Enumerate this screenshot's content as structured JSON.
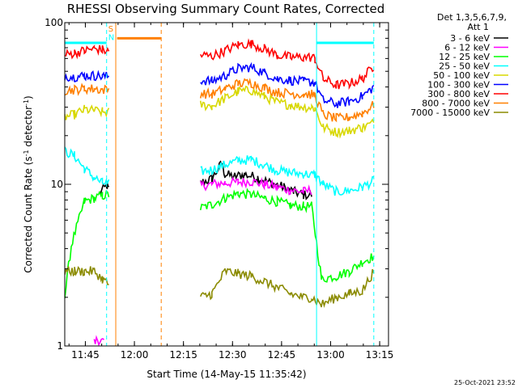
{
  "chart_data": {
    "type": "line",
    "title": "RHESSI Observing Summary Count Rates, Corrected",
    "xlabel": "Start Time (14-May-15 11:35:42)",
    "ylabel_main": "Corrected Count Rate (s",
    "ylabel_sup1": "-1",
    "ylabel_mid": " detector",
    "ylabel_sup2": "-1",
    "ylabel_end": ")",
    "y_scale": "log",
    "ylim": [
      1,
      100
    ],
    "x_range_min": [
      3.0,
      102.0
    ],
    "x_ticks": [
      {
        "label": "11:45",
        "min": 9.3
      },
      {
        "label": "12:00",
        "min": 24.3
      },
      {
        "label": "12:15",
        "min": 39.3
      },
      {
        "label": "12:30",
        "min": 54.3
      },
      {
        "label": "12:45",
        "min": 69.3
      },
      {
        "label": "13:00",
        "min": 84.3
      },
      {
        "label": "13:15",
        "min": 99.3
      }
    ],
    "y_ticks": [
      {
        "label": "100",
        "value": 100
      },
      {
        "label": "10",
        "value": 10
      },
      {
        "label": "1",
        "value": 1
      }
    ],
    "legend_header": [
      "Det 1,3,5,6,7,9,",
      "Att 1"
    ],
    "series": [
      {
        "name": "3 - 6 keV",
        "color": "#000000",
        "points": [
          [
            13.5,
            8.8
          ],
          [
            16.0,
            9.8
          ],
          [
            16.5,
            9.2
          ],
          [
            44.5,
            10.2
          ],
          [
            48,
            10.8
          ],
          [
            51,
            13.5
          ],
          [
            52,
            11.5
          ],
          [
            55,
            11.2
          ],
          [
            58,
            11.5
          ],
          [
            62,
            11.0
          ],
          [
            66,
            10.2
          ],
          [
            70,
            9.6
          ],
          [
            73,
            9.0
          ],
          [
            76,
            8.6
          ],
          [
            78.5,
            8.6
          ]
        ]
      },
      {
        "name": "6 - 12 keV",
        "color": "#ff00ff",
        "points": [
          [
            12.0,
            1.05
          ],
          [
            13.0,
            1.1
          ],
          [
            15.0,
            1.05
          ],
          [
            44.5,
            9.8
          ],
          [
            48,
            10.0
          ],
          [
            52,
            10.2
          ],
          [
            56,
            10.3
          ],
          [
            60,
            10.4
          ],
          [
            64,
            10.0
          ],
          [
            68,
            9.6
          ],
          [
            72,
            9.2
          ],
          [
            76,
            9.0
          ],
          [
            78.5,
            9.2
          ]
        ]
      },
      {
        "name": "12 - 25 keV",
        "color": "#00ff00",
        "points": [
          [
            3.0,
            2.0
          ],
          [
            5,
            4.2
          ],
          [
            9,
            7.8
          ],
          [
            12,
            8.2
          ],
          [
            14.5,
            8.5
          ],
          [
            16.5,
            8.6
          ],
          [
            44.5,
            7.1
          ],
          [
            48,
            7.5
          ],
          [
            52,
            8.2
          ],
          [
            56,
            8.8
          ],
          [
            60,
            8.6
          ],
          [
            64,
            8.2
          ],
          [
            68,
            7.8
          ],
          [
            72,
            7.4
          ],
          [
            76,
            7.3
          ],
          [
            78.5,
            7.3
          ],
          [
            81.5,
            2.6
          ],
          [
            86,
            2.7
          ],
          [
            90,
            2.9
          ],
          [
            94,
            3.3
          ],
          [
            97.5,
            3.6
          ]
        ]
      },
      {
        "name": "25 - 50 keV",
        "color": "#00ffff",
        "points": [
          [
            3.0,
            16
          ],
          [
            6,
            15
          ],
          [
            9,
            12.5
          ],
          [
            12,
            11.0
          ],
          [
            14.5,
            10.2
          ],
          [
            16.5,
            10.1
          ],
          [
            44.5,
            12.0
          ],
          [
            48,
            12.3
          ],
          [
            52,
            13.2
          ],
          [
            56,
            14.0
          ],
          [
            60,
            14.2
          ],
          [
            64,
            13.2
          ],
          [
            68,
            12.2
          ],
          [
            72,
            11.8
          ],
          [
            76,
            11.6
          ],
          [
            78.5,
            11.5
          ],
          [
            79.5,
            11.5
          ],
          [
            82,
            10.0
          ],
          [
            86,
            9.0
          ],
          [
            90,
            9.1
          ],
          [
            94,
            9.6
          ],
          [
            97.5,
            10.5
          ]
        ]
      },
      {
        "name": "50 - 100 keV",
        "color": "#d8d800",
        "points": [
          [
            3.0,
            26
          ],
          [
            6,
            27
          ],
          [
            9,
            29
          ],
          [
            12,
            28.5
          ],
          [
            14.5,
            28
          ],
          [
            16.5,
            28
          ],
          [
            44.5,
            31
          ],
          [
            48,
            30.5
          ],
          [
            52,
            34
          ],
          [
            56,
            37.5
          ],
          [
            60,
            38
          ],
          [
            64,
            35
          ],
          [
            68,
            32
          ],
          [
            72,
            31
          ],
          [
            76,
            30
          ],
          [
            78.5,
            30
          ],
          [
            79.5,
            29.5
          ],
          [
            82,
            22.5
          ],
          [
            86,
            21.0
          ],
          [
            90,
            21.5
          ],
          [
            94,
            22.5
          ],
          [
            97.5,
            24
          ]
        ]
      },
      {
        "name": "100 - 300 keV",
        "color": "#0000ff",
        "points": [
          [
            3.0,
            47
          ],
          [
            6,
            46
          ],
          [
            9,
            47
          ],
          [
            12,
            47
          ],
          [
            14.5,
            46.5
          ],
          [
            16.5,
            46.5
          ],
          [
            44.5,
            44
          ],
          [
            48,
            43.5
          ],
          [
            52,
            47
          ],
          [
            56,
            52
          ],
          [
            60,
            53
          ],
          [
            64,
            49
          ],
          [
            68,
            45
          ],
          [
            72,
            44
          ],
          [
            76,
            43
          ],
          [
            78.5,
            43
          ],
          [
            79.5,
            42.5
          ],
          [
            82,
            33
          ],
          [
            86,
            31.5
          ],
          [
            90,
            32.5
          ],
          [
            94,
            35
          ],
          [
            97.5,
            40
          ]
        ]
      },
      {
        "name": "300 - 800 keV",
        "color": "#ff0000",
        "points": [
          [
            3.0,
            63
          ],
          [
            6,
            65
          ],
          [
            9,
            67
          ],
          [
            12,
            69
          ],
          [
            14.5,
            68
          ],
          [
            16.5,
            66
          ],
          [
            44.5,
            63
          ],
          [
            48,
            62
          ],
          [
            52,
            67
          ],
          [
            56,
            73
          ],
          [
            60,
            74
          ],
          [
            64,
            69
          ],
          [
            68,
            63
          ],
          [
            72,
            61
          ],
          [
            76,
            61
          ],
          [
            78.5,
            61
          ],
          [
            79.5,
            60
          ],
          [
            82,
            45
          ],
          [
            86,
            41
          ],
          [
            90,
            42
          ],
          [
            94,
            45
          ],
          [
            97.5,
            54
          ]
        ]
      },
      {
        "name": "800 - 7000 keV",
        "color": "#ff8000",
        "points": [
          [
            3.0,
            38
          ],
          [
            6,
            38.5
          ],
          [
            9,
            39
          ],
          [
            12,
            39
          ],
          [
            14.5,
            38.5
          ],
          [
            16.5,
            38.5
          ],
          [
            44.5,
            36.5
          ],
          [
            48,
            36
          ],
          [
            52,
            39
          ],
          [
            56,
            42
          ],
          [
            60,
            42.5
          ],
          [
            64,
            39.5
          ],
          [
            68,
            37
          ],
          [
            72,
            36.5
          ],
          [
            76,
            36
          ],
          [
            78.5,
            36
          ],
          [
            79.5,
            35.5
          ],
          [
            82,
            27
          ],
          [
            86,
            25.5
          ],
          [
            90,
            26
          ],
          [
            94,
            27.5
          ],
          [
            97.5,
            31
          ]
        ]
      },
      {
        "name": "7000 - 15000 keV",
        "color": "#8b8b00",
        "points": [
          [
            3.0,
            2.9
          ],
          [
            6,
            2.9
          ],
          [
            9,
            2.9
          ],
          [
            12,
            2.9
          ],
          [
            14.5,
            2.6
          ],
          [
            16.5,
            2.4
          ],
          [
            44.5,
            2.0
          ],
          [
            48,
            2.1
          ],
          [
            52,
            2.9
          ],
          [
            56,
            2.8
          ],
          [
            60,
            2.7
          ],
          [
            64,
            2.5
          ],
          [
            68,
            2.3
          ],
          [
            72,
            2.1
          ],
          [
            76,
            2.0
          ],
          [
            78.5,
            2.0
          ],
          [
            81.5,
            1.8
          ],
          [
            86,
            2.0
          ],
          [
            90,
            2.1
          ],
          [
            94,
            2.2
          ],
          [
            97.5,
            2.9
          ]
        ]
      }
    ],
    "segments": [
      {
        "name": "attenuator-level-cyan",
        "color": "#00ffff",
        "x": [
          3.0,
          15.8
        ],
        "y": 75
      },
      {
        "name": "attenuator-level-cyan-right",
        "color": "#00ffff",
        "x": [
          80.0,
          97.5
        ],
        "y": 75
      },
      {
        "name": "saa-flag-orange",
        "color": "#ff8000",
        "x": [
          19.0,
          32.5
        ],
        "y": 80
      }
    ],
    "vlines": [
      {
        "name": "night-start-line",
        "min": 15.8,
        "color": "#00ffff",
        "dash": true
      },
      {
        "name": "saa-start-line",
        "min": 18.6,
        "color": "#ff8000",
        "dash": false
      },
      {
        "name": "saa-end-line",
        "min": 32.5,
        "color": "#ff8000",
        "dash": true
      },
      {
        "name": "night-end-line",
        "min": 80.0,
        "color": "#00ffff",
        "dash": false
      },
      {
        "name": "night-end-line-2",
        "min": 97.5,
        "color": "#00ffff",
        "dash": true
      }
    ],
    "markers": [
      {
        "name": "saa-marker-s",
        "text": "S",
        "color": "#ff8000",
        "min": 16.3,
        "value": 88
      },
      {
        "name": "night-marker-n",
        "text": "N",
        "color": "#00ffff",
        "min": 16.3,
        "value": 78
      }
    ],
    "footer_date": "25-Oct-2021 23:52"
  }
}
